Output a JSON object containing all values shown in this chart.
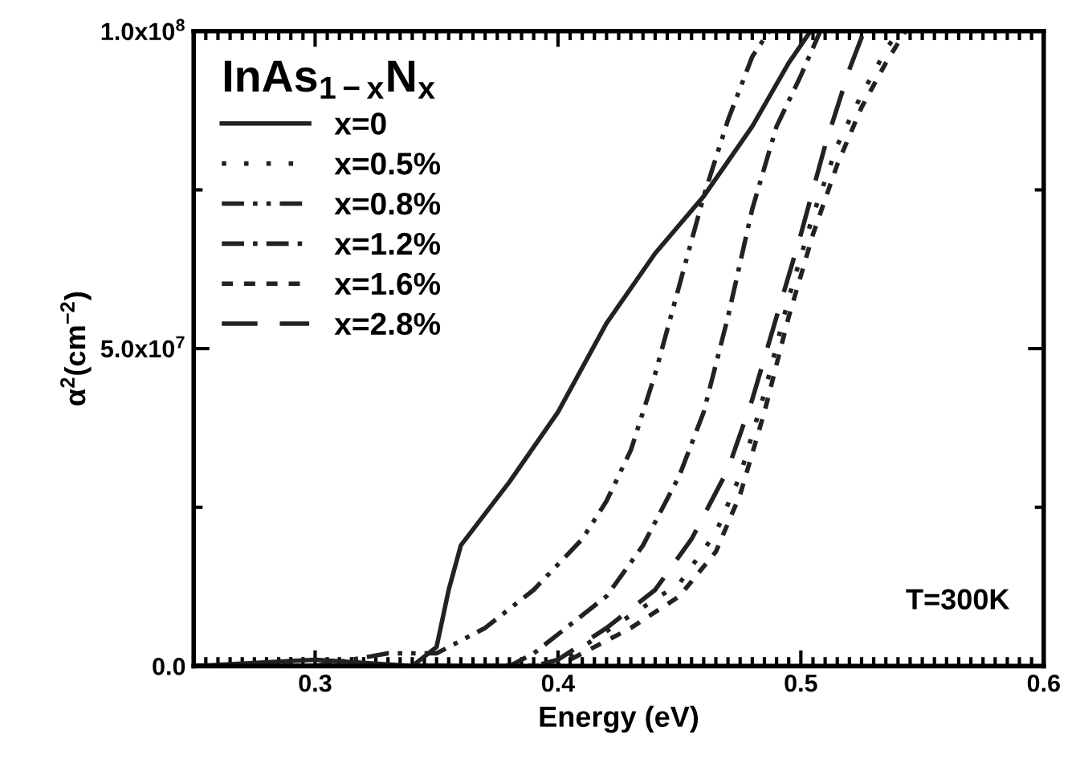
{
  "chart_data": {
    "type": "line",
    "xlabel": "Energy (eV)",
    "ylabel": "α$^{2}$(cm$^{−2}$)",
    "legend_title": "InAs$_{1−x}$N$_{x}$",
    "legend": "top left",
    "grid": false,
    "marker": "none",
    "xlim": [
      0.25,
      0.6
    ],
    "xticks": [
      {
        "value": 0.25,
        "label": null
      },
      0.3,
      0.4,
      0.5,
      0.6
    ],
    "ylim": [
      0,
      100000000
    ],
    "yticks": [
      {
        "value": 0,
        "label": "0.0"
      },
      {
        "value": 50000000,
        "label": "5.0x10$^{7}$"
      },
      {
        "value": 100000000,
        "label": "1.0x10$^{8}$"
      }
    ],
    "annotations": [
      "T=300K"
    ],
    "series": [
      {
        "name": "x=0",
        "color": "#222222",
        "line_style": "solid",
        "x": [
          0.25,
          0.3,
          0.34,
          0.35,
          0.355,
          0.36,
          0.37,
          0.38,
          0.4,
          0.42,
          0.44,
          0.46,
          0.48,
          0.495,
          0.504
        ],
        "values": [
          0,
          1000000,
          0,
          3000000,
          12000000,
          19000000,
          24000000,
          29000000,
          40000000,
          54000000,
          65000000,
          74000000,
          85000000,
          95000000,
          100000000
        ]
      },
      {
        "name": "x=0.5%",
        "color": "#222222",
        "line_style": "dotted",
        "x": [
          0.25,
          0.4,
          0.41,
          0.43,
          0.45,
          0.465,
          0.475,
          0.485,
          0.495,
          0.505,
          0.515,
          0.525,
          0.535,
          0.54
        ],
        "values": [
          0,
          0,
          3000000,
          8000000,
          13000000,
          21000000,
          30000000,
          43000000,
          58000000,
          71000000,
          82000000,
          90000000,
          97000000,
          100000000
        ]
      },
      {
        "name": "x=0.8%",
        "color": "#222222",
        "line_style": "dashdotdot",
        "x": [
          0.25,
          0.3,
          0.33,
          0.35,
          0.37,
          0.39,
          0.41,
          0.42,
          0.43,
          0.44,
          0.45,
          0.46,
          0.47,
          0.48,
          0.487
        ],
        "values": [
          0,
          0,
          2000000,
          2000000,
          6000000,
          12000000,
          20000000,
          26000000,
          34000000,
          46000000,
          60000000,
          74000000,
          86000000,
          96000000,
          100000000
        ]
      },
      {
        "name": "x=1.2%",
        "color": "#222222",
        "line_style": "dashdot",
        "x": [
          0.25,
          0.38,
          0.39,
          0.4,
          0.42,
          0.435,
          0.45,
          0.46,
          0.47,
          0.48,
          0.49,
          0.5,
          0.508
        ],
        "values": [
          0,
          0,
          2000000,
          5000000,
          11000000,
          19000000,
          30000000,
          40000000,
          55000000,
          72000000,
          85000000,
          93000000,
          100000000
        ]
      },
      {
        "name": "x=1.6%",
        "color": "#222222",
        "line_style": "dashed",
        "x": [
          0.25,
          0.4,
          0.41,
          0.43,
          0.45,
          0.465,
          0.475,
          0.485,
          0.495,
          0.505,
          0.515,
          0.525,
          0.535,
          0.543
        ],
        "values": [
          0,
          0,
          2000000,
          6000000,
          11000000,
          18000000,
          27000000,
          40000000,
          55000000,
          68000000,
          79000000,
          88000000,
          95000000,
          100000000
        ]
      },
      {
        "name": "x=2.8%",
        "color": "#222222",
        "line_style": "longdash",
        "x": [
          0.25,
          0.39,
          0.4,
          0.42,
          0.44,
          0.455,
          0.47,
          0.48,
          0.49,
          0.5,
          0.51,
          0.52,
          0.526
        ],
        "values": [
          0,
          0,
          1000000,
          6000000,
          12000000,
          20000000,
          31000000,
          42000000,
          55000000,
          68000000,
          82000000,
          94000000,
          100000000
        ]
      }
    ]
  }
}
